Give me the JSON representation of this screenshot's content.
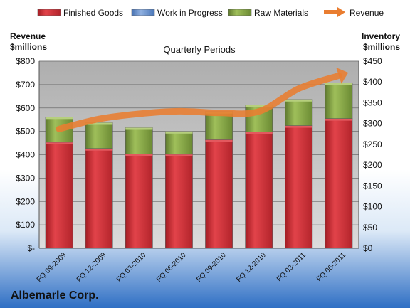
{
  "chart_data": {
    "type": "bar",
    "subtitle": "Quarterly Periods",
    "company": "Albemarle Corp.",
    "left_axis_title": [
      "Revenue",
      "$millions"
    ],
    "right_axis_title": [
      "Inventory",
      "$millions"
    ],
    "categories": [
      "FQ 09-2009",
      "FQ 12-2009",
      "FQ 03-2010",
      "FQ 06-2010",
      "FQ 09-2010",
      "FQ 12-2010",
      "FQ 03-2011",
      "FQ 06-2011"
    ],
    "left_ylim": [
      0,
      800
    ],
    "right_ylim": [
      0,
      450
    ],
    "left_ticks": [
      0,
      100,
      200,
      300,
      400,
      500,
      600,
      700,
      800
    ],
    "left_tick_labels": [
      "$-",
      "$100",
      "$200",
      "$300",
      "$400",
      "$500",
      "$600",
      "$700",
      "$800"
    ],
    "right_ticks": [
      0,
      50,
      100,
      150,
      200,
      250,
      300,
      350,
      400,
      450
    ],
    "right_tick_labels": [
      "$0",
      "$50",
      "$100",
      "$150",
      "$200",
      "$250",
      "$300",
      "$350",
      "$400",
      "$450"
    ],
    "series": [
      {
        "name": "Finished Goods",
        "axis": "right",
        "kind": "bar",
        "color": "#c0262d",
        "values": [
          255,
          240,
          227,
          226,
          261,
          280,
          295,
          312
        ]
      },
      {
        "name": "Work in Progress",
        "axis": "right",
        "kind": "bar",
        "color": "#5b86c4",
        "values": [
          0,
          0,
          0,
          0,
          0,
          0,
          0,
          0
        ]
      },
      {
        "name": "Raw Materials",
        "axis": "right",
        "kind": "bar",
        "color": "#76933c",
        "values": [
          61,
          62,
          63,
          55,
          68,
          65,
          63,
          86
        ]
      },
      {
        "name": "Revenue",
        "axis": "left",
        "kind": "line",
        "color": "#e97d30",
        "values": [
          510,
          553,
          575,
          586,
          579,
          585,
          683,
          738
        ]
      }
    ],
    "legend_position": "top",
    "grid": true
  }
}
